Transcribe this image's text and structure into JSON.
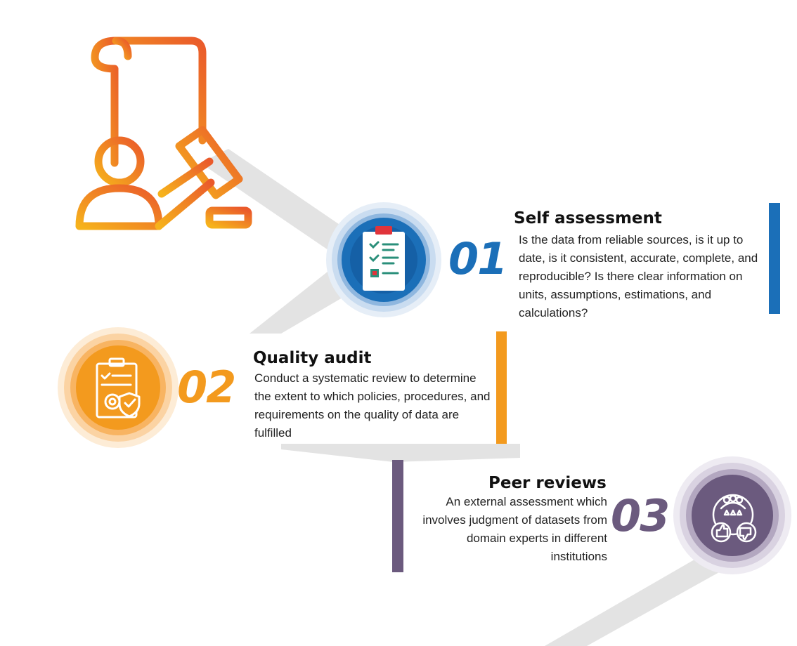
{
  "colors": {
    "blue": "#1b6fb8",
    "orange": "#f39a1e",
    "purple": "#6b5a7e",
    "connector": "#e2e2e2"
  },
  "header_icon": "legal-scroll-gavel-person-icon",
  "steps": [
    {
      "number": "01",
      "title": "Self assessment",
      "text": "Is the data from reliable sources, is it up to date, is it consistent, accurate, complete, and reproducible? Is there clear information on units, assumptions, estimations, and calculations?",
      "icon": "clipboard-checklist-icon",
      "color": "#1b6fb8"
    },
    {
      "number": "02",
      "title": "Quality audit",
      "text": "Conduct a systematic review to determine the extent to which policies, procedures, and requirements on the quality of data are fulfilled",
      "icon": "clipboard-gear-shield-icon",
      "color": "#f39a1e"
    },
    {
      "number": "03",
      "title": "Peer reviews",
      "text": "An external assessment which involves  judgment of datasets from domain experts in different institutions",
      "icon": "peer-review-people-thumbs-icon",
      "color": "#6b5a7e"
    }
  ]
}
